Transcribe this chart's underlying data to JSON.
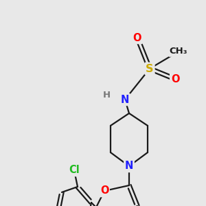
{
  "background_color": "#e8e8e8",
  "bond_color": "#1a1a1a",
  "atom_colors": {
    "N": "#2020ff",
    "O": "#ff0000",
    "S": "#ccaa00",
    "Cl": "#22bb22",
    "C": "#1a1a1a"
  },
  "figsize": [
    3.0,
    3.0
  ],
  "dpi": 100,
  "lw": 1.6,
  "fs": 10.5
}
